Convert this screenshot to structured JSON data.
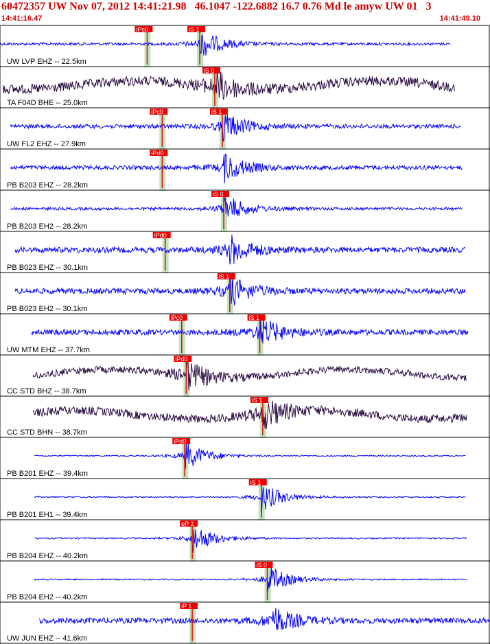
{
  "header": {
    "title": "60472357 UW Nov 07, 2012 14:41:21.98   46.1047 -122.6882 16.7 0.76 Md le amyw UW 01   3",
    "time_start": "14:41:16.47",
    "time_end": "14:41:49.10"
  },
  "colors": {
    "header_text": "#cc0000",
    "trace_blue": "#0000ff",
    "trace_dark": "#2a0a40",
    "pick_box": "#ee0000",
    "pick_text": "#ffffff",
    "pick_band": "#a8dca8",
    "divider": "#000000"
  },
  "chart_data": {
    "type": "line",
    "x_unit": "seconds after 14:41:16.47",
    "xlim": [
      0,
      32.63
    ],
    "traces": [
      {
        "label": "UW LVP EHZ -- 22.5km",
        "color": "#0000ff",
        "start": 0.0,
        "end": 30.0,
        "amp": 2,
        "burst": 13.3,
        "picks": [
          {
            "label": "iPc0",
            "t": 9.8
          },
          {
            "label": "iS 1",
            "t": 13.3
          }
        ]
      },
      {
        "label": "TA F04D BHE -- 25.0km",
        "color": "#2a0a40",
        "start": 0.2,
        "end": 30.3,
        "amp": 7,
        "burst": 14.3,
        "picks": [
          {
            "label": "iS 0",
            "t": 14.3
          }
        ]
      },
      {
        "label": "UW FL2 EHZ -- 27.9km",
        "color": "#0000ff",
        "start": 0.7,
        "end": 30.7,
        "amp": 3,
        "burst": 14.8,
        "picks": [
          {
            "label": "iPc0",
            "t": 10.8
          },
          {
            "label": "iS 1",
            "t": 14.8
          }
        ]
      },
      {
        "label": "PB B203 EHZ -- 28.2km",
        "color": "#0000ff",
        "start": 0.7,
        "end": 30.8,
        "amp": 3,
        "burst": 14.9,
        "picks": [
          {
            "label": "iPd0",
            "t": 10.8
          }
        ]
      },
      {
        "label": "PB B203 EH2 -- 28.2km",
        "color": "#0000ff",
        "start": 0.7,
        "end": 30.8,
        "amp": 2,
        "burst": 14.9,
        "picks": [
          {
            "label": "iS 0",
            "t": 14.9
          }
        ]
      },
      {
        "label": "PB B023 EHZ -- 30.1km",
        "color": "#0000ff",
        "start": 1.0,
        "end": 31.0,
        "amp": 4,
        "burst": 15.3,
        "picks": [
          {
            "label": "iPd0",
            "t": 11.0
          }
        ]
      },
      {
        "label": "PB B023 EH2 -- 30.1km",
        "color": "#0000ff",
        "start": 1.0,
        "end": 31.0,
        "amp": 4,
        "burst": 15.3,
        "picks": [
          {
            "label": "iS 1",
            "t": 15.3
          }
        ]
      },
      {
        "label": "UW MTM EHZ -- 37.7km",
        "color": "#0000ff",
        "start": 2.1,
        "end": 31.2,
        "amp": 4,
        "burst": 17.3,
        "picks": [
          {
            "label": "iPc0",
            "t": 12.1
          },
          {
            "label": "iS 1",
            "t": 17.3
          }
        ]
      },
      {
        "label": "CC STD BHZ -- 38.7km",
        "color": "#2a0a40",
        "start": 2.2,
        "end": 31.1,
        "amp": 5,
        "burst": 12.4,
        "picks": [
          {
            "label": "iPd0",
            "t": 12.4
          }
        ]
      },
      {
        "label": "CC STD BHN -- 38.7km",
        "color": "#2a0a40",
        "start": 2.2,
        "end": 31.1,
        "amp": 6,
        "burst": 17.5,
        "picks": [
          {
            "label": "iS 1",
            "t": 17.5
          }
        ]
      },
      {
        "label": "PB B201 EHZ -- 39.4km",
        "color": "#0000ff",
        "start": 2.3,
        "end": 31.0,
        "amp": 1,
        "burst": 12.3,
        "picks": [
          {
            "label": "iPd0",
            "t": 12.3
          }
        ]
      },
      {
        "label": "PB B201 EH1 -- 39.4km",
        "color": "#0000ff",
        "start": 2.3,
        "end": 31.0,
        "amp": 1,
        "burst": 17.4,
        "picks": [
          {
            "label": "iS 1",
            "t": 17.4
          }
        ]
      },
      {
        "label": "PB B204 EHZ -- 40.2km",
        "color": "#0000ff",
        "start": 2.3,
        "end": 31.1,
        "amp": 1,
        "burst": 12.8,
        "picks": [
          {
            "label": "eP 2",
            "t": 12.8
          }
        ]
      },
      {
        "label": "PB B204 EH2 -- 40.2km",
        "color": "#0000ff",
        "start": 2.3,
        "end": 31.1,
        "amp": 1,
        "burst": 17.8,
        "picks": [
          {
            "label": "iS 0",
            "t": 17.8
          }
        ]
      },
      {
        "label": "UW JUN EHZ -- 41.6km",
        "color": "#0000ff",
        "start": 2.6,
        "end": 32.6,
        "amp": 4,
        "burst": 18.1,
        "picks": [
          {
            "label": "iP 1",
            "t": 12.8
          }
        ]
      }
    ]
  }
}
